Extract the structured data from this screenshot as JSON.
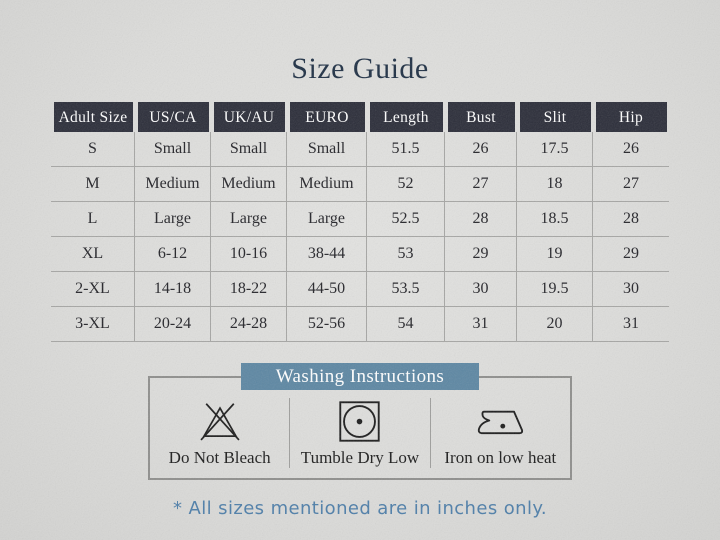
{
  "title": "Size Guide",
  "colors": {
    "page_bg": "#dddddb",
    "table_header_bg": "#2b2d39",
    "grid_line": "#a6a6a4",
    "washing_bar_bg": "#5d87a3",
    "footnote_blue": "#4d7ea9",
    "title_navy": "#1e2f44"
  },
  "size_table": {
    "columns": [
      "Adult Size",
      "US/CA",
      "UK/AU",
      "EURO",
      "Length",
      "Bust",
      "Slit",
      "Hip"
    ],
    "rows": [
      [
        "S",
        "Small",
        "Small",
        "Small",
        "51.5",
        "26",
        "17.5",
        "26"
      ],
      [
        "M",
        "Medium",
        "Medium",
        "Medium",
        "52",
        "27",
        "18",
        "27"
      ],
      [
        "L",
        "Large",
        "Large",
        "Large",
        "52.5",
        "28",
        "18.5",
        "28"
      ],
      [
        "XL",
        "6-12",
        "10-16",
        "38-44",
        "53",
        "29",
        "19",
        "29"
      ],
      [
        "2-XL",
        "14-18",
        "18-22",
        "44-50",
        "53.5",
        "30",
        "19.5",
        "30"
      ],
      [
        "3-XL",
        "20-24",
        "24-28",
        "52-56",
        "54",
        "31",
        "20",
        "31"
      ]
    ]
  },
  "washing": {
    "title": "Washing Instructions",
    "items": [
      {
        "icon": "do-not-bleach-icon",
        "label": "Do Not Bleach"
      },
      {
        "icon": "tumble-dry-low-icon",
        "label": "Tumble Dry Low"
      },
      {
        "icon": "iron-low-heat-icon",
        "label": "Iron on low heat"
      }
    ]
  },
  "footnote": "* All sizes mentioned are in inches only."
}
